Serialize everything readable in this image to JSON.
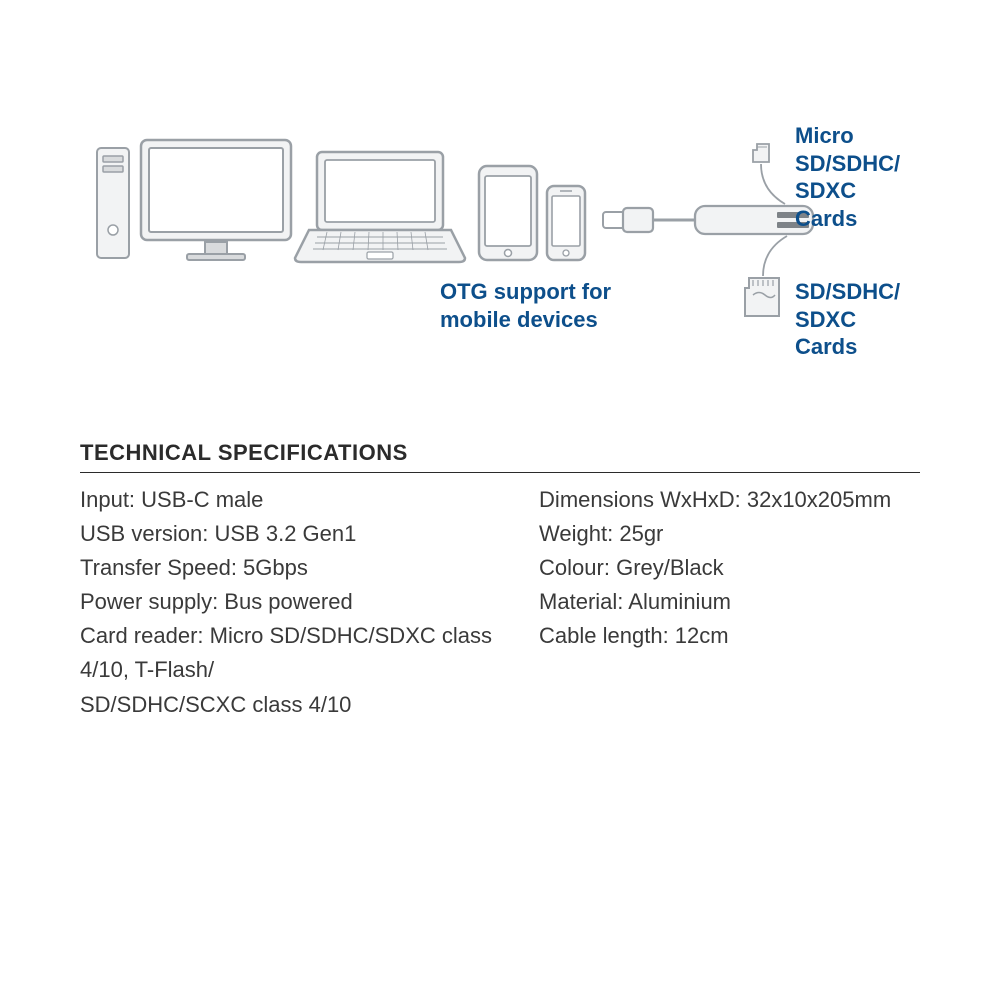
{
  "colors": {
    "outline": "#9aa0a6",
    "outline_dark": "#7d8287",
    "fill_light": "#f2f3f4",
    "fill_mid": "#d9dbdd",
    "label_blue": "#0d4f8b",
    "text_dark": "#3a3a3a",
    "title_dark": "#2b2b2b",
    "rule": "#2b2b2b",
    "white": "#ffffff"
  },
  "labels": {
    "otg": "OTG support for\nmobile devices",
    "micro_sd": "Micro SD/SDHC/\nSDXC Cards",
    "sd": "SD/SDHC/\nSDXC Cards"
  },
  "spec_title": "TECHNICAL SPECIFICATIONS",
  "specs_left": [
    "Input: USB-C male",
    "USB version: USB 3.2 Gen1",
    "Transfer Speed: 5Gbps",
    "Power supply: Bus powered",
    "Card reader: Micro SD/SDHC/SDXC class 4/10, T-Flash/",
    "SD/SDHC/SCXC class 4/10"
  ],
  "specs_right": [
    "Dimensions WxHxD: 32x10x205mm",
    "Weight: 25gr",
    "Colour: Grey/Black",
    "Material: Aluminium",
    "Cable length: 12cm"
  ],
  "style": {
    "label_fontsize": 22,
    "spec_fontsize": 22,
    "title_fontsize": 22,
    "stroke_width": 2
  }
}
